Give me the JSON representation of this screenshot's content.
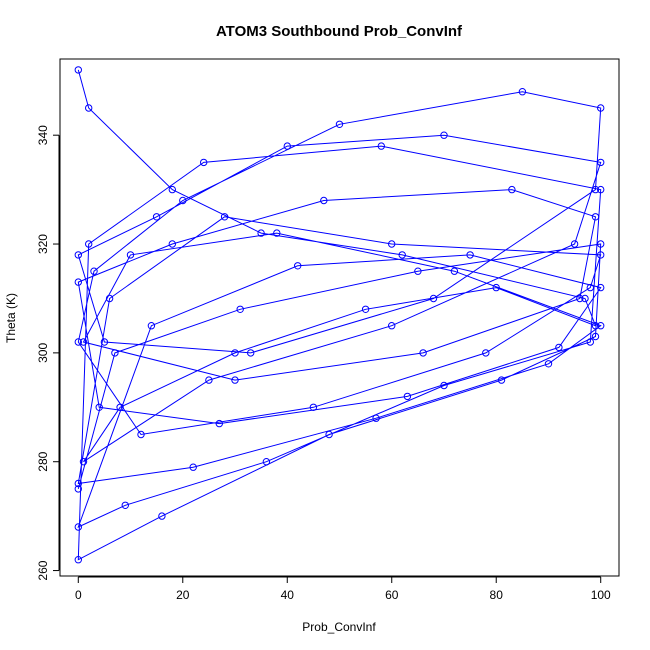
{
  "chart_data": {
    "type": "scatter",
    "title": "ATOM3 Southbound Prob_ConvInf",
    "xlabel": "Prob_ConvInf",
    "ylabel": "Theta (K)",
    "xlim": [
      -3.5,
      103.5
    ],
    "ylim": [
      259,
      354
    ],
    "xticks": [
      0,
      20,
      40,
      60,
      80,
      100
    ],
    "yticks": [
      260,
      280,
      300,
      320,
      340
    ],
    "grid": false,
    "legend": "none",
    "style": "points connected by lines (type='o')",
    "color": "#0000ff",
    "series": [
      {
        "x": [
          0,
          2,
          18,
          35,
          62,
          97,
          99,
          80,
          55,
          30,
          8,
          1,
          25,
          60,
          95,
          100,
          70,
          40,
          15,
          0,
          5,
          33,
          68,
          99,
          100,
          85,
          50,
          20,
          3,
          0,
          12,
          45,
          78,
          98,
          100,
          60,
          28,
          6,
          0,
          22,
          57,
          90,
          100,
          72,
          38,
          10,
          1,
          30,
          66,
          96,
          99,
          83,
          47,
          18,
          0,
          4,
          27,
          63,
          92,
          100,
          75,
          42,
          14,
          0,
          9,
          36,
          70,
          98,
          100,
          58,
          24,
          2,
          0,
          16,
          48,
          81,
          99,
          100,
          65,
          31,
          7,
          0
        ],
        "y": [
          352,
          345,
          330,
          322,
          318,
          310,
          305,
          312,
          308,
          300,
          290,
          280,
          295,
          305,
          320,
          335,
          340,
          338,
          325,
          318,
          302,
          300,
          310,
          330,
          345,
          348,
          342,
          328,
          315,
          302,
          285,
          290,
          300,
          312,
          318,
          320,
          325,
          310,
          276,
          279,
          288,
          298,
          305,
          315,
          322,
          318,
          302,
          295,
          300,
          310,
          325,
          330,
          328,
          320,
          313,
          290,
          287,
          292,
          301,
          312,
          318,
          316,
          305,
          268,
          272,
          280,
          294,
          302,
          330,
          338,
          335,
          320,
          262,
          270,
          285,
          295,
          303,
          320,
          315,
          308,
          300,
          275
        ]
      }
    ]
  }
}
